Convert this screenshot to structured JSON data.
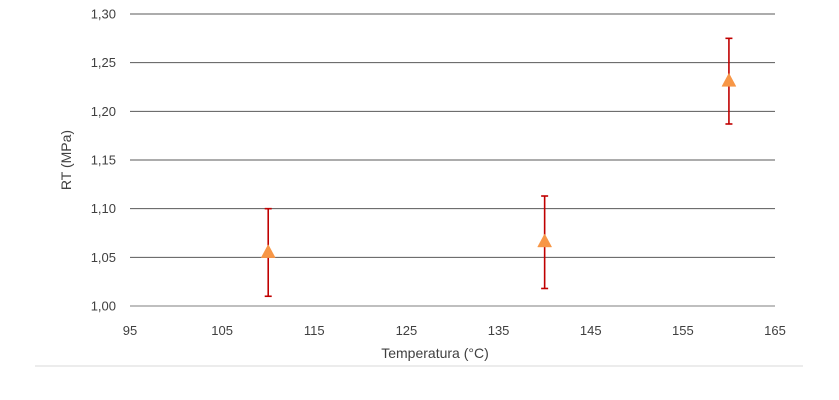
{
  "chart_data": {
    "type": "scatter",
    "title": "",
    "xlabel": "Temperatura (°C)",
    "ylabel": "RT (MPa)",
    "xlim": [
      95,
      165
    ],
    "ylim": [
      1.0,
      1.3
    ],
    "x_ticks": [
      95,
      105,
      115,
      125,
      135,
      145,
      155,
      165
    ],
    "x_tick_labels": [
      "95",
      "105",
      "115",
      "125",
      "135",
      "145",
      "155",
      "165"
    ],
    "y_ticks": [
      1.0,
      1.05,
      1.1,
      1.15,
      1.2,
      1.25,
      1.3
    ],
    "y_tick_labels": [
      "1,00",
      "1,05",
      "1,10",
      "1,15",
      "1,20",
      "1,25",
      "1,30"
    ],
    "grid": "horizontal",
    "legend": "none",
    "series": [
      {
        "marker": "triangle",
        "color": "#F79646",
        "error_bar_color": "#C00000",
        "points": [
          {
            "x": 110,
            "y": 1.055,
            "y_low": 1.01,
            "y_high": 1.1
          },
          {
            "x": 140,
            "y": 1.066,
            "y_low": 1.018,
            "y_high": 1.113
          },
          {
            "x": 160,
            "y": 1.231,
            "y_low": 1.187,
            "y_high": 1.275
          }
        ]
      }
    ]
  }
}
